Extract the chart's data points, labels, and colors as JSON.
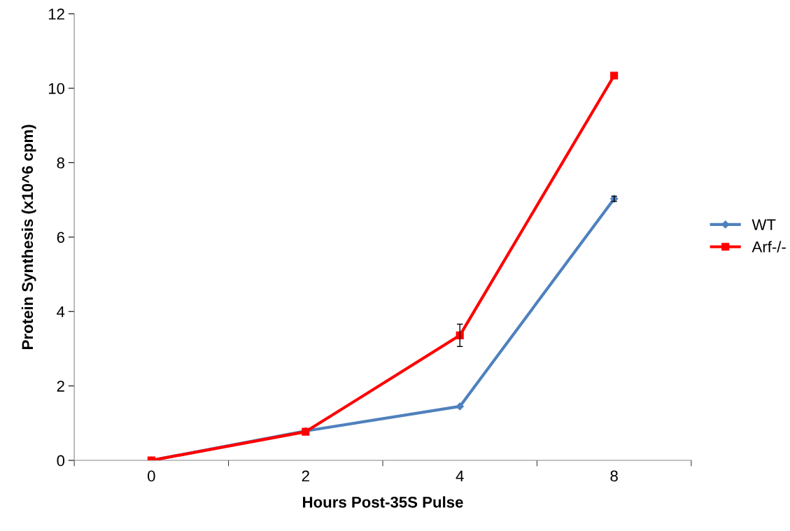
{
  "chart_data": {
    "type": "line",
    "xlabel": "Hours Post-35S Pulse",
    "ylabel": "Protein Synthesis (x10^6 cpm)",
    "categories": [
      "0",
      "2",
      "4",
      "8"
    ],
    "series": [
      {
        "name": "WT",
        "color": "#4f81bd",
        "marker": "diamond",
        "values": [
          0,
          0.79,
          1.45,
          7.03
        ],
        "errors": [
          null,
          null,
          null,
          0.07
        ]
      },
      {
        "name": "Arf-/-",
        "color": "#ff0000",
        "marker": "square",
        "values": [
          0,
          0.77,
          3.36,
          10.34
        ],
        "errors": [
          null,
          null,
          0.3,
          null
        ]
      }
    ],
    "ylim": [
      0,
      12
    ],
    "yticks": [
      0,
      2,
      4,
      6,
      8,
      10,
      12
    ],
    "grid": false,
    "legend": "right",
    "line_style": "solid"
  }
}
